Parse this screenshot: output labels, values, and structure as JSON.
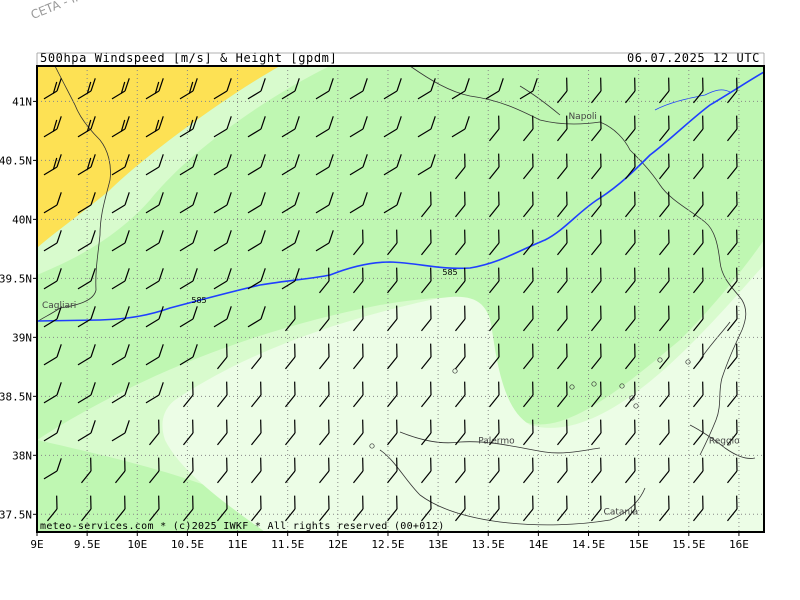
{
  "watermark": "CETA - Inst.",
  "header": {
    "title": "500hpa Windspeed [m/s] & Height [gpdm]",
    "date": "06.07.2025 12 UTC"
  },
  "footer": {
    "copyright": "meteo-services.com * (c)2025 IWKF * All rights reserved (00+012)"
  },
  "map": {
    "lon_range": [
      9,
      16.25
    ],
    "lat_range": [
      37.35,
      41.3
    ],
    "x_ticks": [
      "9E",
      "9.5E",
      "10E",
      "10.5E",
      "11E",
      "11.5E",
      "12E",
      "12.5E",
      "13E",
      "13.5E",
      "14E",
      "14.5E",
      "15E",
      "15.5E",
      "16E"
    ],
    "y_ticks": [
      "41N",
      "40.5N",
      "40N",
      "39.5N",
      "39N",
      "38.5N",
      "38N",
      "37.5N"
    ],
    "cities": [
      {
        "name": "Napoli",
        "lon": 14.3,
        "lat": 40.85
      },
      {
        "name": "Cagliari",
        "lon": 9.05,
        "lat": 39.25
      },
      {
        "name": "Palermo",
        "lon": 13.4,
        "lat": 38.1
      },
      {
        "name": "Catania",
        "lon": 14.65,
        "lat": 37.5
      },
      {
        "name": "Reggio",
        "lon": 15.7,
        "lat": 38.1
      }
    ],
    "contour_label": "585",
    "colors": {
      "band_yellow": "#fde154",
      "band_mid": "#bff7b2",
      "band_light": "#d8fbcd",
      "band_lightest": "#ecfde6",
      "contour": "#1f3fff",
      "coast": "#333333",
      "grid": "#888888"
    }
  }
}
